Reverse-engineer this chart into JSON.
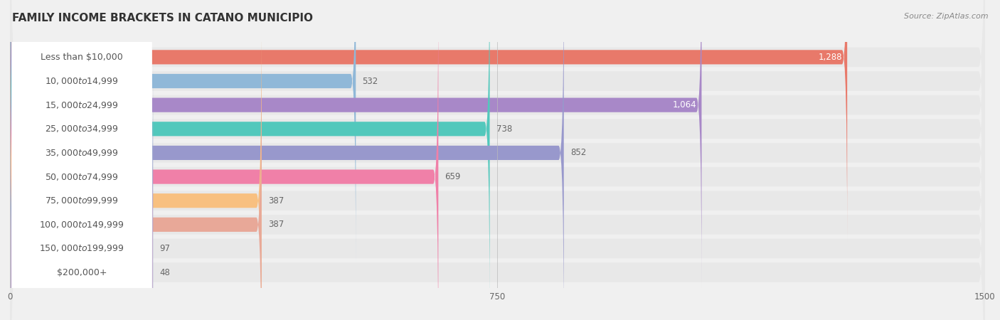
{
  "title": "FAMILY INCOME BRACKETS IN CATANO MUNICIPIO",
  "source": "Source: ZipAtlas.com",
  "categories": [
    "Less than $10,000",
    "$10,000 to $14,999",
    "$15,000 to $24,999",
    "$25,000 to $34,999",
    "$35,000 to $49,999",
    "$50,000 to $74,999",
    "$75,000 to $99,999",
    "$100,000 to $149,999",
    "$150,000 to $199,999",
    "$200,000+"
  ],
  "values": [
    1288,
    532,
    1064,
    738,
    852,
    659,
    387,
    387,
    97,
    48
  ],
  "bar_colors": [
    "#E8796A",
    "#90B8D8",
    "#A888C8",
    "#52C8BC",
    "#9898CC",
    "#F080A8",
    "#F8C080",
    "#E8A898",
    "#90B0D8",
    "#C0AECE"
  ],
  "xlim": [
    0,
    1500
  ],
  "xticks": [
    0,
    750,
    1500
  ],
  "background_color": "#f0f0f0",
  "bar_bg_color": "#e8e8e8",
  "label_bg_color": "#ffffff",
  "title_fontsize": 11,
  "source_fontsize": 8,
  "label_fontsize": 9,
  "value_fontsize": 8.5,
  "label_text_color": "#555555",
  "value_text_color_inside": "#ffffff",
  "value_text_color_outside": "#666666"
}
